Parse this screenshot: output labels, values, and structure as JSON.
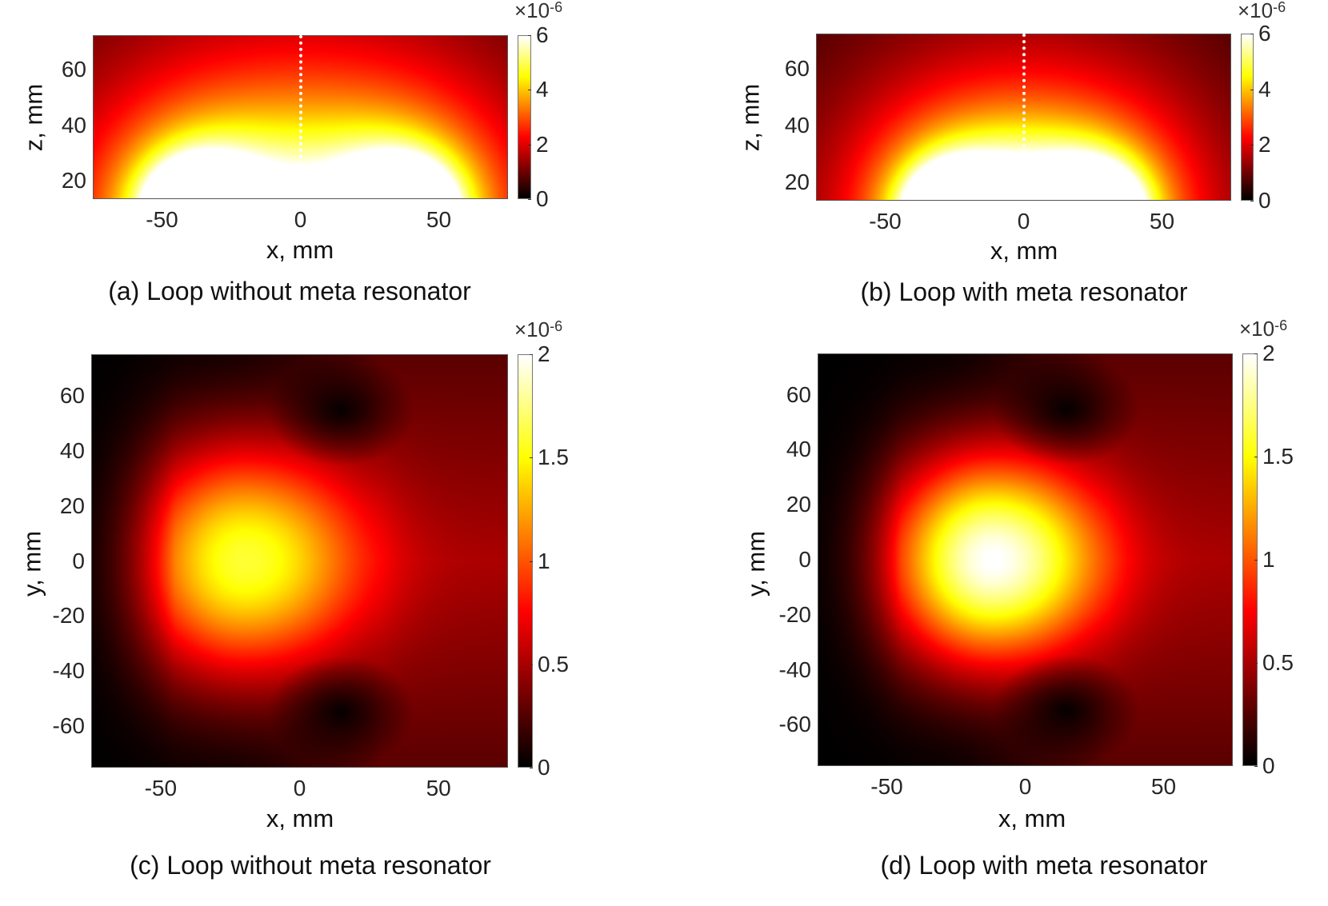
{
  "chart_data": [
    {
      "id": "a",
      "type": "heatmap",
      "caption": "(a) Loop without meta resonator",
      "xlabel": "x, mm",
      "ylabel": "z, mm",
      "xlim": [
        -75,
        75
      ],
      "ylim": [
        13.5,
        72.5
      ],
      "xticks": [
        -50,
        0,
        50
      ],
      "yticks": [
        20,
        40,
        60
      ],
      "colorbar": {
        "ticks": [
          "0",
          "2",
          "4",
          "6"
        ],
        "tick_values": [
          0,
          2,
          4,
          6
        ],
        "range": [
          0,
          6
        ],
        "multiplier": "×10",
        "exponent": "-6",
        "colormap": "hot"
      },
      "model": {
        "kind": "loop-xz",
        "radius_mm": 40,
        "peak": 6.5
      },
      "marker": {
        "kind": "dotted-vertical-line",
        "x": 0
      }
    },
    {
      "id": "b",
      "type": "heatmap",
      "caption": "(b) Loop with meta resonator",
      "xlabel": "x, mm",
      "ylabel": "z, mm",
      "xlim": [
        -75,
        75
      ],
      "ylim": [
        13.5,
        72.5
      ],
      "xticks": [
        -50,
        0,
        50
      ],
      "yticks": [
        20,
        40,
        60
      ],
      "colorbar": {
        "ticks": [
          "0",
          "2",
          "4",
          "6"
        ],
        "tick_values": [
          0,
          2,
          4,
          6
        ],
        "range": [
          0,
          6
        ],
        "multiplier": "×10",
        "exponent": "-6",
        "colormap": "hot"
      },
      "model": {
        "kind": "loop-xz",
        "radius_mm": 28,
        "peak": 9
      },
      "marker": {
        "kind": "dotted-vertical-line",
        "x": 0
      }
    },
    {
      "id": "c",
      "type": "heatmap",
      "caption": "(c) Loop without meta resonator",
      "xlabel": "x, mm",
      "ylabel": "y, mm",
      "xlim": [
        -75,
        75
      ],
      "ylim": [
        -75,
        75
      ],
      "xticks": [
        -50,
        0,
        50
      ],
      "yticks": [
        -60,
        -40,
        -20,
        0,
        20,
        40,
        60
      ],
      "colorbar": {
        "ticks": [
          "0",
          "0.5",
          "1",
          "1.5",
          "2"
        ],
        "tick_values": [
          0,
          0.5,
          1,
          1.5,
          2
        ],
        "range": [
          0,
          2
        ],
        "multiplier": "×10",
        "exponent": "-6",
        "colormap": "hot"
      },
      "model": {
        "kind": "blob-xy",
        "center": [
          -20,
          0
        ],
        "peak": 1.6,
        "sigma": 30
      }
    },
    {
      "id": "d",
      "type": "heatmap",
      "caption": "(d) Loop with meta resonator",
      "xlabel": "x, mm",
      "ylabel": "y, mm",
      "xlim": [
        -75,
        75
      ],
      "ylim": [
        -75,
        75
      ],
      "xticks": [
        -50,
        0,
        50
      ],
      "yticks": [
        -60,
        -40,
        -20,
        0,
        20,
        40,
        60
      ],
      "colorbar": {
        "ticks": [
          "0",
          "0.5",
          "1",
          "1.5",
          "2"
        ],
        "tick_values": [
          0,
          0.5,
          1,
          1.5,
          2
        ],
        "range": [
          0,
          2
        ],
        "multiplier": "×10",
        "exponent": "-6",
        "colormap": "hot"
      },
      "model": {
        "kind": "blob-xy",
        "center": [
          -12,
          0
        ],
        "peak": 2.0,
        "sigma": 27
      }
    }
  ]
}
